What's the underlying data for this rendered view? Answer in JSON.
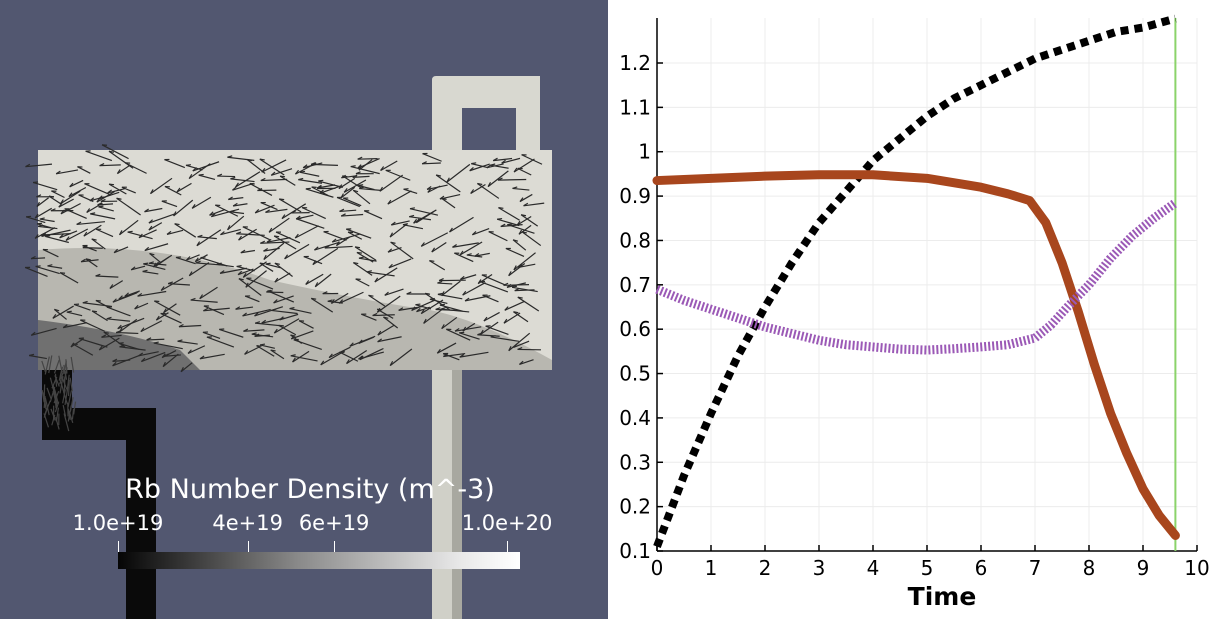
{
  "render_view": {
    "background_color": "#525770",
    "colorbar": {
      "title": "Rb Number Density (m^-3)",
      "ticks": [
        {
          "label": "1.0e+19",
          "value": 1e+19
        },
        {
          "label": "4e+19",
          "value": 4e+19
        },
        {
          "label": "6e+19",
          "value": 6e+19
        },
        {
          "label": "1.0e+20",
          "value": 1e+20
        }
      ],
      "range": [
        1e+19,
        1.03e+20
      ]
    }
  },
  "plot_view": {
    "chart_data": {
      "type": "line",
      "xlabel": "Time",
      "ylabel": "",
      "xlim": [
        0,
        10
      ],
      "ylim": [
        0.1,
        1.3
      ],
      "xticks": [
        0,
        1,
        2,
        3,
        4,
        5,
        6,
        7,
        8,
        9,
        10
      ],
      "yticks": [
        0.1,
        0.2,
        0.3,
        0.4,
        0.5,
        0.6,
        0.7,
        0.8,
        0.9,
        1,
        1.1,
        1.2
      ],
      "ytick_labels": [
        "0.1",
        "0.2",
        "0.3",
        "0.4",
        "0.5",
        "0.6",
        "0.7",
        "0.8",
        "0.9",
        "1",
        "1.1",
        "1.2"
      ],
      "grid": true,
      "time_marker": 9.6,
      "series": [
        {
          "color": "#000000",
          "style": "dashed",
          "x": [
            0,
            0.5,
            1,
            1.5,
            2,
            2.5,
            3,
            3.5,
            4,
            4.5,
            5,
            5.5,
            6,
            6.5,
            7,
            7.5,
            8,
            8.5,
            9,
            9.6
          ],
          "y": [
            0.11,
            0.27,
            0.41,
            0.54,
            0.65,
            0.75,
            0.84,
            0.91,
            0.98,
            1.03,
            1.08,
            1.12,
            1.15,
            1.18,
            1.21,
            1.23,
            1.25,
            1.27,
            1.28,
            1.3
          ]
        },
        {
          "color": "#a8461d",
          "style": "solid",
          "x": [
            0,
            1,
            2,
            3,
            4,
            5,
            6,
            6.5,
            6.9,
            7.2,
            7.5,
            7.8,
            8.1,
            8.4,
            8.7,
            9,
            9.3,
            9.6
          ],
          "y": [
            0.935,
            0.94,
            0.945,
            0.948,
            0.948,
            0.94,
            0.92,
            0.905,
            0.89,
            0.84,
            0.75,
            0.64,
            0.52,
            0.41,
            0.32,
            0.24,
            0.18,
            0.135
          ]
        },
        {
          "color": "#9b59b6",
          "style": "hatched",
          "x": [
            0,
            0.5,
            1,
            1.5,
            2,
            2.5,
            3,
            3.5,
            4,
            4.5,
            5,
            5.5,
            6,
            6.5,
            7,
            7.3,
            7.6,
            8,
            8.4,
            8.8,
            9.2,
            9.6
          ],
          "y": [
            0.69,
            0.665,
            0.645,
            0.625,
            0.605,
            0.59,
            0.575,
            0.565,
            0.56,
            0.555,
            0.553,
            0.556,
            0.56,
            0.565,
            0.58,
            0.61,
            0.65,
            0.7,
            0.76,
            0.81,
            0.85,
            0.885
          ]
        }
      ]
    }
  }
}
